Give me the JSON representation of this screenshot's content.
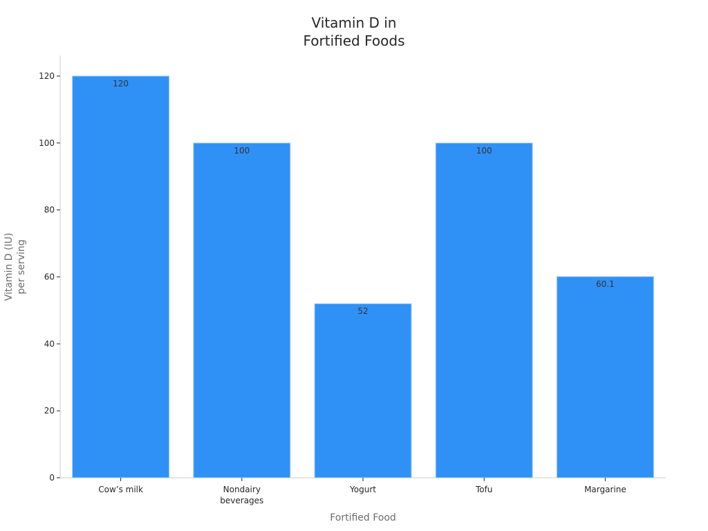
{
  "title_line1": "Vitamin D in",
  "title_line2": "Fortified Foods",
  "ylabel_line1": "Vitamin D (IU)",
  "ylabel_line2": "per serving",
  "xlabel": "Fortified Food",
  "colors": {
    "bar": "#2f91f6",
    "bar_edge": "#a9cdf5",
    "axis": "#cccccc"
  },
  "chart_data": {
    "type": "bar",
    "title": "Vitamin D in Fortified Foods",
    "xlabel": "Fortified Food",
    "ylabel": "Vitamin D (IU) per serving",
    "categories": [
      "Cow’s milk",
      "Nondairy beverages",
      "Yogurt",
      "Tofu",
      "Margarine"
    ],
    "category_lines": [
      [
        "Cow’s milk"
      ],
      [
        "Nondairy",
        "beverages"
      ],
      [
        "Yogurt"
      ],
      [
        "Tofu"
      ],
      [
        "Margarine"
      ]
    ],
    "values": [
      120,
      100,
      52,
      100,
      60.1
    ],
    "value_labels": [
      "120",
      "100",
      "52",
      "100",
      "60.1"
    ],
    "ylim": [
      0,
      126
    ],
    "yticks": [
      0,
      20,
      40,
      60,
      80,
      100,
      120
    ],
    "grid": false,
    "legend": null
  }
}
